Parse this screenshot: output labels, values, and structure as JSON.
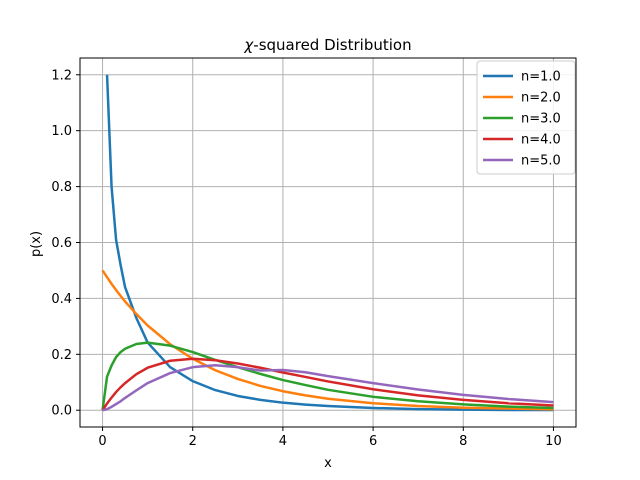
{
  "chart_data": {
    "type": "line",
    "title_symbol": "χ",
    "title_rest": "-squared Distribution",
    "xlabel": "x",
    "ylabel": "p(x)",
    "xlim": [
      -0.5,
      10.5
    ],
    "ylim": [
      -0.06,
      1.26
    ],
    "xticks": [
      0,
      2,
      4,
      6,
      8,
      10
    ],
    "xtick_labels": [
      "0",
      "2",
      "4",
      "6",
      "8",
      "10"
    ],
    "yticks": [
      0.0,
      0.2,
      0.4,
      0.6,
      0.8,
      1.0,
      1.2
    ],
    "ytick_labels": [
      "0.0",
      "0.2",
      "0.4",
      "0.6",
      "0.8",
      "1.0",
      "1.2"
    ],
    "grid": true,
    "legend_position": "top-right",
    "x": [
      0.0,
      0.1,
      0.2,
      0.3,
      0.4,
      0.5,
      0.75,
      1.0,
      1.5,
      2.0,
      2.5,
      3.0,
      3.5,
      4.0,
      4.5,
      5.0,
      6.0,
      7.0,
      8.0,
      9.0,
      10.0
    ],
    "series": [
      {
        "name": "n=1.0",
        "color": "#1f77b4",
        "x_start": 0.1,
        "values": [
          null,
          1.2,
          0.8,
          0.61,
          0.52,
          0.44,
          0.33,
          0.242,
          0.154,
          0.104,
          0.072,
          0.051,
          0.037,
          0.027,
          0.02,
          0.015,
          0.008,
          0.004,
          0.002,
          0.001,
          0.001
        ]
      },
      {
        "name": "n=2.0",
        "color": "#ff7f0e",
        "values": [
          0.5,
          0.476,
          0.452,
          0.43,
          0.409,
          0.389,
          0.344,
          0.303,
          0.236,
          0.184,
          0.143,
          0.112,
          0.087,
          0.068,
          0.053,
          0.041,
          0.025,
          0.015,
          0.009,
          0.006,
          0.003
        ]
      },
      {
        "name": "n=3.0",
        "color": "#2ca02c",
        "values": [
          0.0,
          0.12,
          0.16,
          0.19,
          0.208,
          0.22,
          0.237,
          0.242,
          0.231,
          0.208,
          0.18,
          0.154,
          0.13,
          0.108,
          0.09,
          0.073,
          0.048,
          0.032,
          0.021,
          0.013,
          0.008
        ]
      },
      {
        "name": "n=4.0",
        "color": "#d62728",
        "values": [
          0.0,
          0.024,
          0.045,
          0.065,
          0.082,
          0.097,
          0.129,
          0.152,
          0.177,
          0.184,
          0.179,
          0.167,
          0.152,
          0.135,
          0.119,
          0.103,
          0.075,
          0.053,
          0.037,
          0.025,
          0.017
        ]
      },
      {
        "name": "n=5.0",
        "color": "#9467bd",
        "values": [
          0.0,
          0.004,
          0.012,
          0.022,
          0.032,
          0.044,
          0.071,
          0.097,
          0.133,
          0.154,
          0.161,
          0.154,
          0.142,
          0.144,
          0.136,
          0.122,
          0.097,
          0.074,
          0.055,
          0.04,
          0.029
        ]
      }
    ]
  }
}
